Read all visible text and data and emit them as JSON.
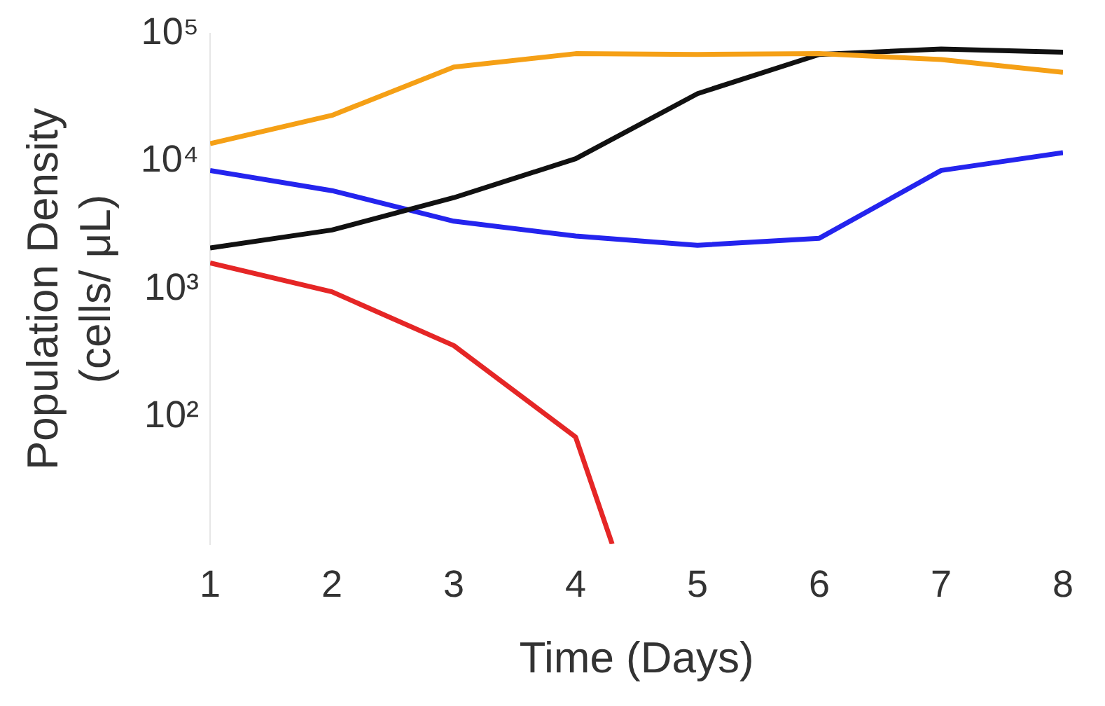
{
  "chart_data": {
    "type": "line",
    "xlabel": "Time (Days)",
    "ylabel": "Population Density\n(cells/ μL)",
    "x": [
      1,
      2,
      3,
      4,
      5,
      6,
      7,
      8
    ],
    "series": [
      {
        "color": "#f5a016",
        "values": [
          13800,
          23000,
          55000,
          70000,
          69000,
          70000,
          63000,
          50000
        ]
      },
      {
        "color": "#111111",
        "values": [
          2100,
          2900,
          5200,
          10500,
          34000,
          69000,
          76000,
          72000
        ]
      },
      {
        "color": "#2424ee",
        "values": [
          8500,
          5900,
          3400,
          2600,
          2200,
          2500,
          8500,
          11700
        ]
      },
      {
        "color": "#e52626",
        "x": [
          1,
          2,
          3,
          4,
          4.3
        ],
        "values": [
          1600,
          950,
          360,
          69,
          10
        ]
      }
    ],
    "xlim": [
      1,
      8
    ],
    "xticks": [
      1,
      2,
      3,
      4,
      5,
      6,
      7,
      8
    ],
    "ylim": [
      10,
      100000
    ],
    "yticks": [
      {
        "value": 100,
        "label": "10²"
      },
      {
        "value": 1000,
        "label": "10³"
      },
      {
        "value": 10000,
        "label": "10⁴"
      },
      {
        "value": 100000,
        "label": "10⁵"
      }
    ],
    "log": "y",
    "grid": false,
    "legend": false,
    "marker": "none",
    "line_style": "solid"
  }
}
